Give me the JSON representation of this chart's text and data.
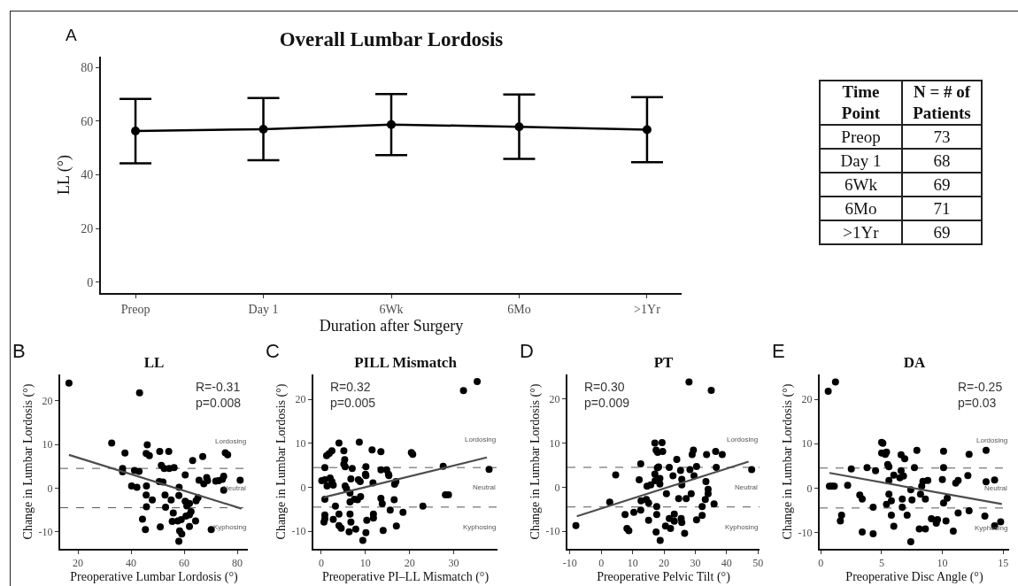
{
  "chart_data": [
    {
      "type": "line",
      "title": "Overall Lumbar Lordosis",
      "xlabel": "Duration after Surgery",
      "ylabel": "LL (°)",
      "categories": [
        "Preop",
        "Day 1",
        "6Wk",
        "6Mo",
        ">1Yr"
      ],
      "series": [
        {
          "color": "#000000",
          "marker": "circle",
          "values": [
            56.3,
            57.0,
            58.7,
            57.9,
            56.8
          ],
          "errors": [
            12.0,
            11.6,
            11.4,
            12.0,
            12.1
          ]
        }
      ],
      "ylim": [
        -4,
        84
      ],
      "yticks": [
        0,
        20,
        40,
        60,
        80
      ],
      "grid": false,
      "line_style": "solid",
      "annotations": [
        "A"
      ]
    },
    {
      "type": "other",
      "xlabel": "Time Point",
      "ylabel": "N = # of Patients",
      "categories": [
        "Preop",
        "Day 1",
        "6Wk",
        "6Mo",
        ">1Yr"
      ],
      "values": [
        73,
        68,
        69,
        71,
        69
      ],
      "data_labels": true
    },
    {
      "type": "scatter",
      "title": "LL",
      "xlabel": "Preoperative Lumbar Lordosis (°)",
      "ylabel": "Change in Lumbar Lordosis (°)",
      "xlim": [
        13.3,
        84
      ],
      "xticks": [
        20,
        40,
        60,
        80
      ],
      "ylim": [
        -13.9,
        26
      ],
      "yticks": [
        -10,
        0,
        10,
        20
      ],
      "grid": false,
      "series": [
        {
          "color": "#000000",
          "marker": "circle",
          "x": [
            16.6,
            43.2,
            32.7,
            37.7,
            36.8,
            36.8,
            41.3,
            43.0,
            40.2,
            42.2,
            46.1,
            45.7,
            46.9,
            50.8,
            54.2,
            51.4,
            52.5,
            54.4,
            56.2,
            50.6,
            52.0,
            45.8,
            45.7,
            48.0,
            45.8,
            44.3,
            45.4,
            52.8,
            53.0,
            51.0,
            55.1,
            55.9,
            55.5,
            57.6,
            58.1,
            58.0,
            58.9,
            58.3,
            59.1,
            58.0,
            60.4,
            60.4,
            61.0,
            62.0,
            60.7,
            62.0,
            62.6,
            62.0,
            63.2,
            64.5,
            65.2,
            64.3,
            67.0,
            65.6,
            67.4,
            68.5,
            68.8,
            70.2,
            71.9,
            73.0,
            74.4,
            74.9,
            74.9,
            75.5,
            76.4,
            81.1
          ],
          "values": [
            24.0,
            21.8,
            10.3,
            8.0,
            4.5,
            3.7,
            4.0,
            3.8,
            0.5,
            0.2,
            9.9,
            7.9,
            7.4,
            8.4,
            8.4,
            5.2,
            4.5,
            4.5,
            4.7,
            1.5,
            1.4,
            0.5,
            -1.6,
            -2.7,
            -4.3,
            -7.1,
            -9.5,
            -1.6,
            -4.4,
            -8.9,
            -2.7,
            -5.7,
            -7.6,
            -7.5,
            0.2,
            -1.7,
            -7.2,
            -9.8,
            -10.5,
            -12.2,
            3.0,
            -3.0,
            -4.1,
            -3.5,
            -6.4,
            -6.1,
            -5.4,
            -8.8,
            6.3,
            -2.9,
            -2.2,
            -7.5,
            7.2,
            1.8,
            1.0,
            2.4,
            1.7,
            -9.5,
            1.6,
            1.7,
            2.0,
            2.7,
            -0.5,
            8.1,
            7.6,
            1.8
          ]
        },
        {
          "type": "line",
          "color": "#4d4d4d",
          "x": [
            16.6,
            81.6
          ],
          "values": [
            7.6,
            -4.7
          ]
        }
      ],
      "ref_lines": [
        {
          "axis": "y",
          "value": 4.5,
          "line_style": "dashed",
          "color": "#555555"
        },
        {
          "axis": "y",
          "value": -4.5,
          "line_style": "dashed",
          "color": "#555555"
        }
      ],
      "annotations": [
        "B",
        "R=-0.31\np=0.008",
        "Lordosing",
        "Neutral",
        "Kyphosing"
      ]
    },
    {
      "type": "scatter",
      "title": "PILL Mismatch",
      "xlabel": "Preoperative PI–LL Mismatch (°)",
      "ylabel": "Change in Lumbar Lordosis (°)",
      "xlim": [
        -1.8,
        39.9
      ],
      "xticks": [
        0,
        10,
        20,
        30
      ],
      "ylim": [
        -14,
        25.7
      ],
      "yticks": [
        -10,
        0,
        10,
        20
      ],
      "grid": false,
      "series": [
        {
          "color": "#000000",
          "marker": "circle",
          "x": [
            32.2,
            35.3,
            0.8,
            0.1,
            0.8,
            1.3,
            0.8,
            1.2,
            1.8,
            2.4,
            2.0,
            2.4,
            2.7,
            0.8,
            0.6,
            0.8,
            2.7,
            3.2,
            4.0,
            4.0,
            4.5,
            4.0,
            5.1,
            5.3,
            5.1,
            5.4,
            5.4,
            5.7,
            6.7,
            7.0,
            6.5,
            6.5,
            6.5,
            6.7,
            6.3,
            7.5,
            8.2,
            8.4,
            8.8,
            8.9,
            8.6,
            7.8,
            10.0,
            10.1,
            10.1,
            9.4,
            10.1,
            10.3,
            11.5,
            11.7,
            11.8,
            11.8,
            13.5,
            13.5,
            13.5,
            13.8,
            14.0,
            14.8,
            15.2,
            15.3,
            15.6,
            16.6,
            16.9,
            16.5,
            17.0,
            18.5,
            20.4,
            20.7,
            23.0,
            27.6,
            28.1,
            28.8,
            38.0
          ],
          "values": [
            22.0,
            24.1,
            4.5,
            1.5,
            1.7,
            0.3,
            -2.7,
            7.2,
            7.7,
            8.3,
            2.1,
            1.3,
            0.5,
            -6.3,
            -7.9,
            -7.2,
            -7.3,
            -4.3,
            -6.1,
            -8.7,
            -9.3,
            10.1,
            8.3,
            6.3,
            5.3,
            4.7,
            0.3,
            -0.3,
            1.9,
            4.3,
            -1.3,
            -3.3,
            -6.1,
            -7.9,
            -10.1,
            -2.7,
            -2.8,
            1.7,
            1.3,
            -2.1,
            10.3,
            -9.5,
            3.0,
            4.7,
            2.7,
            -12.1,
            -10.3,
            -7.5,
            8.5,
            1.0,
            -6.1,
            -7.0,
            4.0,
            8.1,
            -2.5,
            -3.7,
            -9.8,
            4.0,
            3.0,
            2.7,
            -5.2,
            0.7,
            1.3,
            -2.8,
            -8.8,
            -5.7,
            7.9,
            7.5,
            -4.3,
            4.8,
            -1.7,
            -1.7,
            4.1
          ]
        },
        {
          "type": "line",
          "color": "#4d4d4d",
          "x": [
            0.5,
            37.5
          ],
          "values": [
            -2.3,
            6.8
          ]
        }
      ],
      "ref_lines": [
        {
          "axis": "y",
          "value": 4.5,
          "line_style": "dashed",
          "color": "#555555"
        },
        {
          "axis": "y",
          "value": -4.5,
          "line_style": "dashed",
          "color": "#555555"
        }
      ],
      "annotations": [
        "C",
        "R=0.32\np=0.005",
        "Lordosing",
        "Neutral",
        "Kyphosing"
      ]
    },
    {
      "type": "scatter",
      "title": "PT",
      "xlabel": "Preoperative Pelvic Tilt (°)",
      "ylabel": "Change in Lumbar Lordosis (°)",
      "xlim": [
        -10.8,
        50.5
      ],
      "xticks": [
        -10,
        0,
        10,
        20,
        30,
        40,
        50
      ],
      "ylim": [
        -14,
        25.6
      ],
      "yticks": [
        -10,
        0,
        10,
        20
      ],
      "grid": false,
      "series": [
        {
          "color": "#000000",
          "marker": "circle",
          "x": [
            28.0,
            35.1,
            -8.1,
            2.7,
            4.6,
            7.6,
            8.2,
            8.8,
            10.4,
            12.1,
            12.6,
            12.7,
            12.6,
            14.4,
            14.6,
            15.1,
            15.1,
            15.8,
            17.1,
            17.1,
            17.5,
            17.2,
            18.0,
            17.9,
            18.3,
            18.7,
            18.7,
            17.7,
            17.7,
            17.5,
            18.8,
            19.4,
            19.6,
            20.5,
            20.8,
            21.7,
            21.7,
            22.1,
            22.9,
            23.3,
            23.3,
            24.1,
            24.7,
            25.3,
            25.7,
            25.7,
            25.5,
            25.7,
            26.6,
            27.1,
            28.3,
            28.7,
            29.0,
            29.4,
            29.6,
            30.4,
            30.4,
            32.2,
            32.2,
            33.2,
            33.4,
            33.6,
            34.1,
            34.1,
            36.0,
            36.5,
            36.7,
            38.6,
            48.0
          ],
          "values": [
            23.9,
            22.0,
            -8.7,
            -3.4,
            2.8,
            -6.2,
            -9.4,
            -9.9,
            -5.7,
            1.7,
            5.3,
            -3.1,
            -5.2,
            -2.8,
            0.2,
            -3.6,
            -7.5,
            0.5,
            3.0,
            10.0,
            8.4,
            1.5,
            7.9,
            4.4,
            4.6,
            2.0,
            0.7,
            -4.4,
            -6.2,
            -10.2,
            -12.1,
            10.1,
            8.1,
            -8.8,
            -1.5,
            4.5,
            -7.1,
            -9.4,
            2.6,
            -6.1,
            -7.7,
            6.3,
            -2.6,
            3.8,
            1.8,
            0.5,
            -7.1,
            -8.0,
            -10.5,
            -2.6,
            4.0,
            -1.5,
            7.4,
            8.4,
            2.6,
            4.7,
            -7.4,
            -4.4,
            -6.4,
            -2.8,
            1.3,
            7.4,
            -0.5,
            -1.5,
            -3.8,
            8.1,
            4.5,
            7.4,
            4.0
          ]
        },
        {
          "type": "line",
          "color": "#4d4d4d",
          "x": [
            -7.8,
            47.0
          ],
          "values": [
            -6.6,
            5.8
          ]
        }
      ],
      "ref_lines": [
        {
          "axis": "y",
          "value": 4.5,
          "line_style": "dashed",
          "color": "#555555"
        },
        {
          "axis": "y",
          "value": -4.5,
          "line_style": "dashed",
          "color": "#555555"
        }
      ],
      "annotations": [
        "D",
        "R=0.30\np=0.009",
        "Lordosing",
        "Neutral",
        "Kyphosing"
      ]
    },
    {
      "type": "scatter",
      "title": "DA",
      "xlabel": "Preoperative Disc Angle (°)",
      "ylabel": "Change in Lumbar Lordosis (°)",
      "xlim": [
        -0.1,
        15.5
      ],
      "xticks": [
        0,
        5,
        10,
        15
      ],
      "ylim": [
        -13.7,
        25.6
      ],
      "yticks": [
        -10,
        0,
        10,
        20
      ],
      "grid": false,
      "series": [
        {
          "color": "#000000",
          "marker": "circle",
          "x": [
            0.6,
            1.2,
            0.7,
            0.9,
            1.1,
            1.6,
            1.7,
            2.2,
            2.5,
            3.2,
            3.4,
            3.4,
            3.8,
            4.5,
            4.3,
            4.3,
            5.0,
            5.1,
            5.0,
            5.3,
            5.4,
            5.5,
            5.6,
            5.6,
            5.6,
            5.4,
            5.8,
            5.8,
            6.0,
            6.0,
            6.5,
            6.6,
            6.7,
            6.7,
            6.8,
            6.6,
            6.9,
            7.1,
            7.4,
            7.5,
            7.4,
            7.7,
            7.9,
            8.1,
            8.2,
            8.3,
            8.4,
            8.6,
            8.6,
            8.8,
            9.1,
            9.5,
            9.6,
            10.0,
            10.1,
            10.1,
            10.1,
            10.3,
            10.4,
            10.9,
            11.1,
            11.3,
            11.3,
            12.1,
            12.2,
            12.2,
            13.6,
            13.6,
            13.5,
            14.3,
            14.3,
            14.8
          ],
          "values": [
            21.8,
            23.9,
            0.4,
            0.4,
            0.4,
            -7.4,
            -6.1,
            0.6,
            4.3,
            -1.6,
            -2.5,
            -9.9,
            4.6,
            3.9,
            -4.3,
            -10.3,
            10.3,
            10.1,
            7.9,
            7.6,
            8.1,
            5.3,
            4.8,
            1.7,
            -1.4,
            -3.7,
            -2.9,
            -6.1,
            -8.6,
            2.9,
            2.3,
            3.9,
            -4.3,
            -2.5,
            2.7,
            7.5,
            6.6,
            -6.1,
            -0.4,
            -2.7,
            -12.1,
            4.6,
            8.5,
            -9.2,
            -1.4,
            0.4,
            1.5,
            -2.5,
            -9.2,
            1.7,
            -6.9,
            -7.9,
            -7.1,
            1.9,
            8.3,
            4.6,
            -3.4,
            -7.4,
            -2.3,
            -9.7,
            1.1,
            1.7,
            -5.6,
            2.8,
            7.6,
            -5.1,
            8.5,
            1.4,
            -6.3,
            1.8,
            -8.5,
            -7.6
          ]
        },
        {
          "type": "line",
          "color": "#4d4d4d",
          "x": [
            0.7,
            14.9
          ],
          "values": [
            3.4,
            -3.6
          ]
        }
      ],
      "ref_lines": [
        {
          "axis": "y",
          "value": 4.5,
          "line_style": "dashed",
          "color": "#555555"
        },
        {
          "axis": "y",
          "value": -4.5,
          "line_style": "dashed",
          "color": "#555555"
        }
      ],
      "annotations": [
        "E",
        "R=-0.25\np=0.03",
        "Lordosing",
        "Neutral",
        "Kyphosing"
      ]
    }
  ]
}
